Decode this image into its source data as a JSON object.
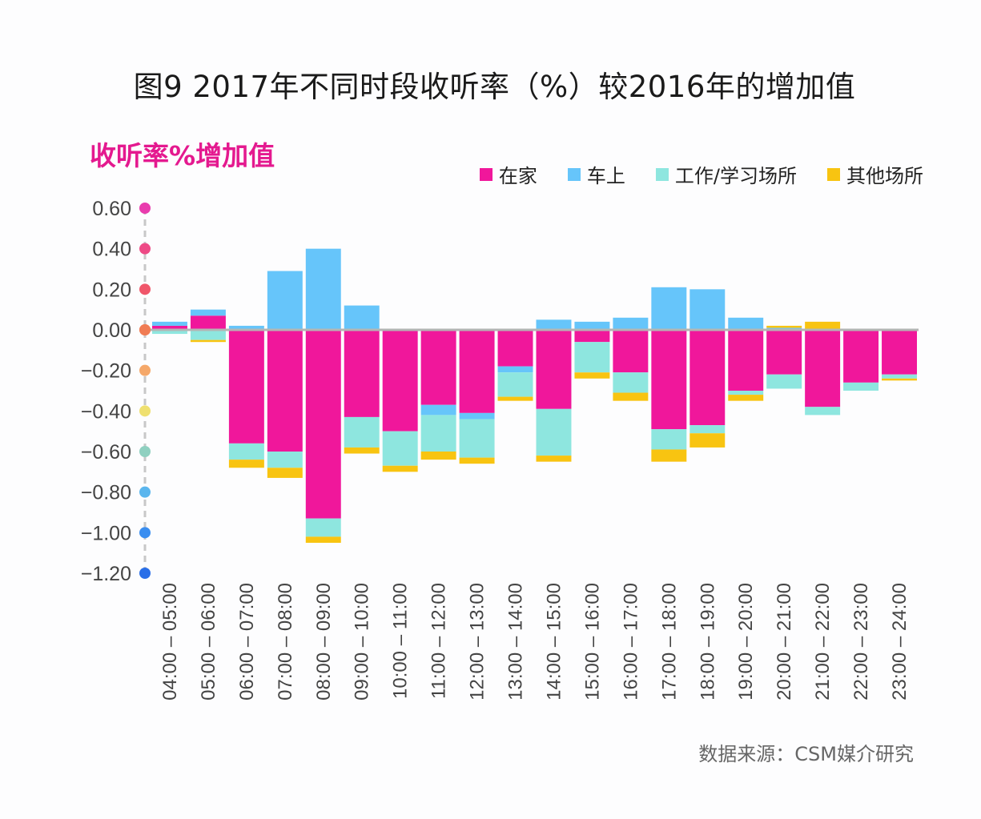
{
  "chart_data": {
    "type": "bar",
    "stacked": true,
    "title": "图9 2017年不同时段收听率（%）较2016年的增加值",
    "ylabel": "收听率%增加值",
    "xlabel": "",
    "ylim": [
      -1.2,
      0.6
    ],
    "yticks": [
      0.6,
      0.4,
      0.2,
      0.0,
      -0.2,
      -0.4,
      -0.6,
      -0.8,
      -1.0,
      -1.2
    ],
    "ytick_labels": [
      "0.60",
      "0.40",
      "0.20",
      "0.00",
      "−0.20",
      "−0.40",
      "−0.60",
      "−0.80",
      "−1.00",
      "−1.20"
    ],
    "ytick_dot_colors": [
      "#e93cae",
      "#ee4a86",
      "#f0566a",
      "#f07c54",
      "#f5a86a",
      "#efe070",
      "#8fd0c0",
      "#5bb6ee",
      "#3a8ef0",
      "#2a6fe8"
    ],
    "legend_position": "top-right",
    "categories": [
      "04:00 – 05:00",
      "05:00 – 06:00",
      "06:00 – 07:00",
      "07:00 – 08:00",
      "08:00 – 09:00",
      "09:00 – 10:00",
      "10:00 – 11:00",
      "11:00 – 12:00",
      "12:00 – 13:00",
      "13:00 – 14:00",
      "14:00 – 15:00",
      "15:00 – 16:00",
      "16:00 – 17:00",
      "17:00 – 18:00",
      "18:00 – 19:00",
      "19:00 – 20:00",
      "20:00 – 21:00",
      "21:00 – 22:00",
      "22:00 – 23:00",
      "23:00 – 24:00"
    ],
    "series": [
      {
        "name": "在家",
        "color": "#f0179b",
        "values": [
          0.02,
          0.07,
          -0.56,
          -0.6,
          -0.93,
          -0.43,
          -0.5,
          -0.37,
          -0.41,
          -0.18,
          -0.39,
          -0.06,
          -0.21,
          -0.49,
          -0.47,
          -0.3,
          -0.22,
          -0.38,
          -0.26,
          -0.22
        ]
      },
      {
        "name": "车上",
        "color": "#66c5fa",
        "values": [
          0.02,
          0.03,
          0.02,
          0.29,
          0.4,
          0.12,
          0.0,
          -0.05,
          -0.03,
          -0.03,
          0.05,
          0.04,
          0.06,
          0.21,
          0.2,
          0.06,
          0.01,
          0.0,
          0.0,
          0.0
        ]
      },
      {
        "name": "工作/学习场所",
        "color": "#8ee6df",
        "values": [
          -0.02,
          -0.05,
          -0.08,
          -0.08,
          -0.09,
          -0.15,
          -0.17,
          -0.18,
          -0.19,
          -0.12,
          -0.23,
          -0.15,
          -0.1,
          -0.1,
          -0.04,
          -0.02,
          -0.07,
          -0.04,
          -0.04,
          -0.02
        ]
      },
      {
        "name": "其他场所",
        "color": "#f8c411",
        "values": [
          0.0,
          -0.01,
          -0.04,
          -0.05,
          -0.03,
          -0.03,
          -0.03,
          -0.04,
          -0.03,
          -0.02,
          -0.03,
          -0.03,
          -0.04,
          -0.06,
          -0.07,
          -0.03,
          0.01,
          0.04,
          0.0,
          -0.01
        ]
      }
    ]
  },
  "source": "数据来源：CSM媒介研究"
}
